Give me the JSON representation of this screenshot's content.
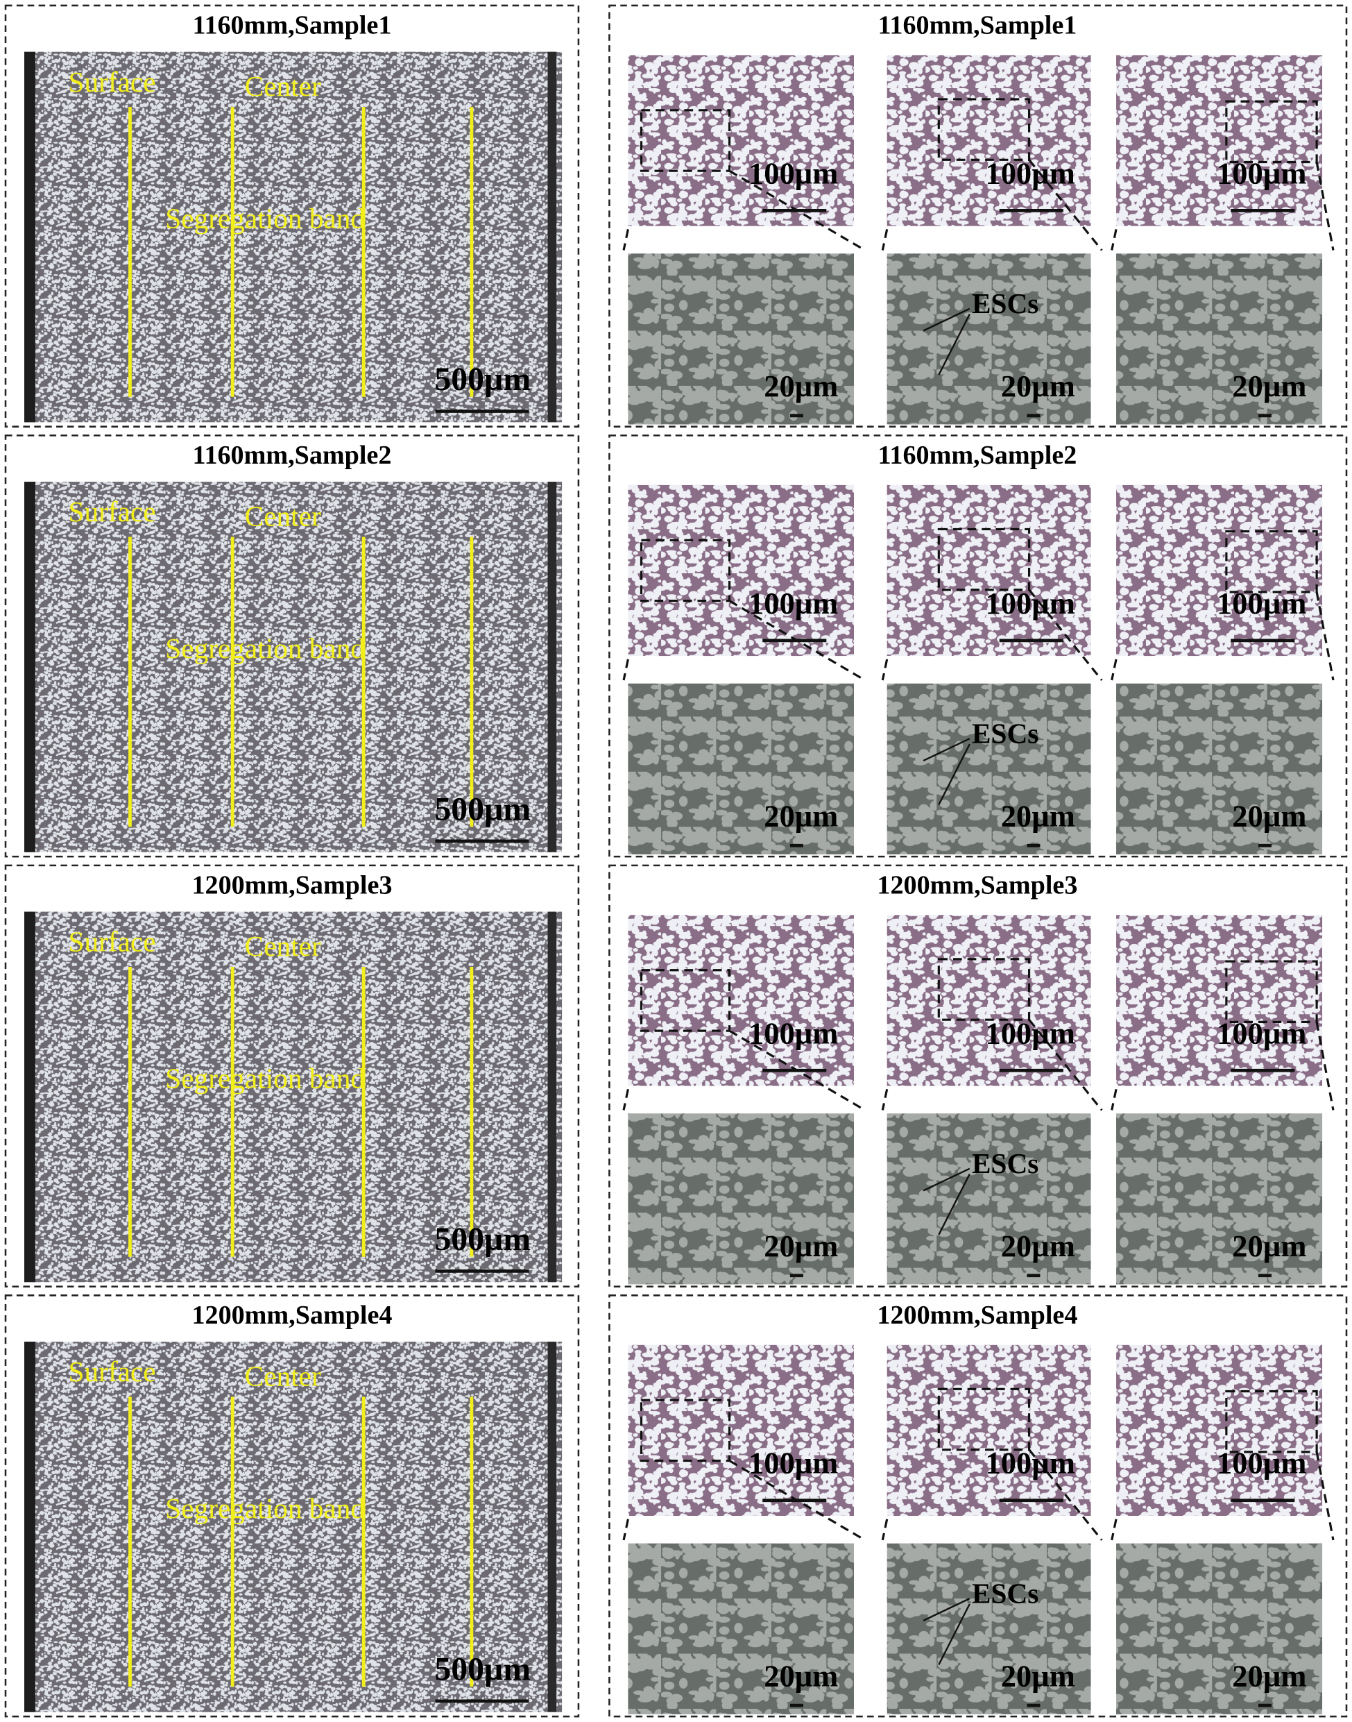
{
  "panels": [
    {
      "left": {
        "title": "1160mm,Sample1",
        "surface": "Surface",
        "center": "Center",
        "band": "Segregation band",
        "scale": "500µm"
      },
      "right": {
        "title": "1160mm,Sample1",
        "top_scales": [
          "100µm",
          "100µm",
          "100µm"
        ],
        "bottom_scales": [
          "20µm",
          "20µm",
          "20µm"
        ],
        "annotation": "ESCs"
      }
    },
    {
      "left": {
        "title": "1160mm,Sample2",
        "surface": "Surface",
        "center": "Center",
        "band": "Segregation band",
        "scale": "500µm"
      },
      "right": {
        "title": "1160mm,Sample2",
        "top_scales": [
          "100µm",
          "100µm",
          "100µm"
        ],
        "bottom_scales": [
          "20µm",
          "20µm",
          "20µm"
        ],
        "annotation": "ESCs"
      }
    },
    {
      "left": {
        "title": "1200mm,Sample3",
        "surface": "Surface",
        "center": "Center",
        "band": "Segregation band",
        "scale": "500µm"
      },
      "right": {
        "title": "1200mm,Sample3",
        "top_scales": [
          "100µm",
          "100µm",
          "100µm"
        ],
        "bottom_scales": [
          "20µm",
          "20µm",
          "20µm"
        ],
        "annotation": "ESCs"
      }
    },
    {
      "left": {
        "title": "1200mm,Sample4",
        "surface": "Surface",
        "center": "Center",
        "band": "Segregation band",
        "scale": "500µm"
      },
      "right": {
        "title": "1200mm,Sample4",
        "top_scales": [
          "100µm",
          "100µm",
          "100µm"
        ],
        "bottom_scales": [
          "20µm",
          "20µm",
          "20µm"
        ],
        "annotation": "ESCs"
      }
    }
  ]
}
